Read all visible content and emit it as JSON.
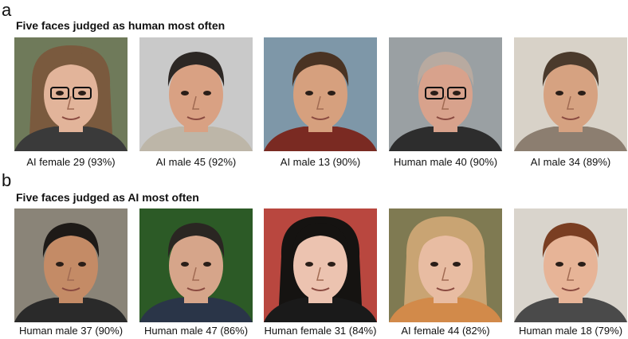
{
  "panels": [
    {
      "label": "a",
      "title": "Five faces judged as human most often",
      "faces": [
        {
          "caption": "AI female 29 (93%)"
        },
        {
          "caption": "AI male 45 (92%)"
        },
        {
          "caption": "AI male 13 (90%)"
        },
        {
          "caption": "Human male 40 (90%)"
        },
        {
          "caption": "AI male 34 (89%)"
        }
      ]
    },
    {
      "label": "b",
      "title": "Five faces judged as AI most often",
      "faces": [
        {
          "caption": "Human male 37 (90%)"
        },
        {
          "caption": "Human male 47 (86%)"
        },
        {
          "caption": "Human female 31 (84%)"
        },
        {
          "caption": "AI female 44 (82%)"
        },
        {
          "caption": "Human male 18 (79%)"
        }
      ]
    }
  ]
}
